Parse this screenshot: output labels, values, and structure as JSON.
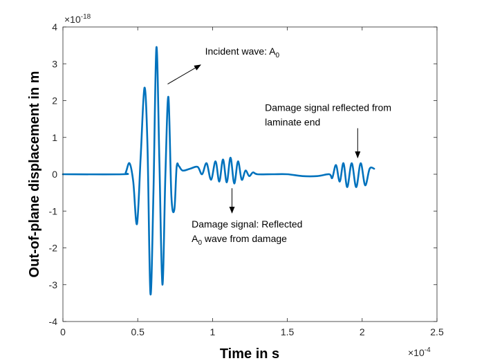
{
  "chart_data": {
    "type": "line",
    "title": "",
    "xlabel": "Time in s",
    "ylabel": "Out-of-plane displacement in m",
    "x_exponent": "×10",
    "x_exponent_power": "-4",
    "y_exponent": "×10",
    "y_exponent_power": "-18",
    "xlim": [
      0,
      2.5
    ],
    "ylim": [
      -4,
      4
    ],
    "xticks": [
      0,
      0.5,
      1,
      1.5,
      2,
      2.5
    ],
    "xtick_labels": [
      "0",
      "0.5",
      "1",
      "1.5",
      "2",
      "2.5"
    ],
    "yticks": [
      -4,
      -3,
      -2,
      -1,
      0,
      1,
      2,
      3,
      4
    ],
    "ytick_labels": [
      "-4",
      "-3",
      "-2",
      "-1",
      "0",
      "1",
      "2",
      "3",
      "4"
    ],
    "grid": false,
    "series": [
      {
        "name": "Out-of-plane displacement",
        "color": "#0072BD",
        "x": [
          0,
          0.4,
          0.42,
          0.445,
          0.47,
          0.495,
          0.52,
          0.545,
          0.565,
          0.585,
          0.605,
          0.625,
          0.645,
          0.665,
          0.685,
          0.705,
          0.725,
          0.745,
          0.76,
          0.775,
          0.8,
          0.85,
          0.9,
          0.93,
          0.96,
          0.99,
          1.02,
          1.045,
          1.07,
          1.095,
          1.12,
          1.145,
          1.17,
          1.195,
          1.22,
          1.245,
          1.27,
          1.3,
          1.4,
          1.5,
          1.6,
          1.7,
          1.78,
          1.8,
          1.825,
          1.85,
          1.875,
          1.9,
          1.93,
          1.96,
          1.99,
          2.02,
          2.05,
          2.08
        ],
        "y": [
          0,
          0,
          0.05,
          0.3,
          -0.2,
          -1.35,
          0.5,
          2.35,
          0.8,
          -3.25,
          -0.5,
          3.45,
          0.3,
          -3.0,
          0.0,
          2.1,
          -0.6,
          -0.95,
          0.2,
          0.22,
          0.1,
          0.15,
          0.2,
          0.0,
          0.3,
          -0.15,
          0.35,
          -0.2,
          0.4,
          -0.22,
          0.45,
          -0.25,
          0.35,
          -0.15,
          0.1,
          -0.05,
          0.05,
          0.0,
          0.0,
          0.0,
          -0.05,
          -0.05,
          0.0,
          -0.1,
          0.25,
          -0.2,
          0.3,
          -0.35,
          0.3,
          -0.35,
          0.3,
          -0.3,
          0.15,
          0.15
        ]
      }
    ],
    "annotations": [
      {
        "id": "incident",
        "text": "Incident wave: A",
        "sub": "0",
        "text_x": 0.95,
        "text_y": 3.25,
        "arrow_from": [
          0.7,
          2.45
        ],
        "arrow_to": [
          0.92,
          2.97
        ]
      },
      {
        "id": "laminate",
        "line1": "Damage signal reflected from",
        "line2": "laminate end",
        "text_x": 1.35,
        "text_y": 1.72,
        "arrow_from": [
          1.97,
          1.25
        ],
        "arrow_to": [
          1.97,
          0.45
        ]
      },
      {
        "id": "damage",
        "line1": "Damage signal: Reflected",
        "line2": "A",
        "line2_sub": "0",
        "line2_rest": " wave from damage",
        "text_x": 0.86,
        "text_y": -1.45,
        "arrow_from": [
          1.13,
          -0.38
        ],
        "arrow_to": [
          1.13,
          -1.05
        ]
      }
    ]
  }
}
